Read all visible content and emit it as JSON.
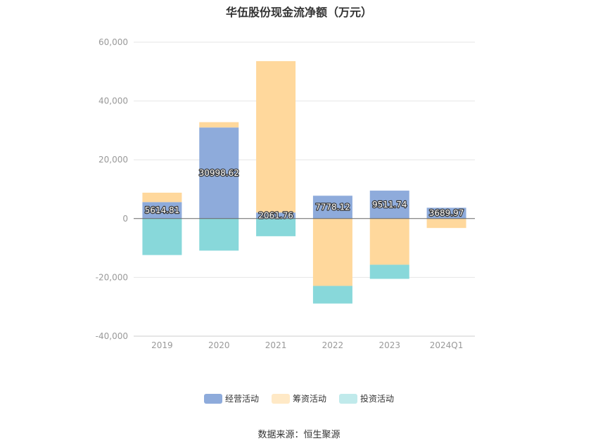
{
  "chart_data": {
    "type": "bar",
    "stacked": true,
    "title": "华伍股份现金流净额（万元）",
    "categories": [
      "2019",
      "2020",
      "2021",
      "2022",
      "2023",
      "2024Q1"
    ],
    "series": [
      {
        "name": "经营活动",
        "color": "#8eabdb",
        "values": [
          5614.81,
          30998.62,
          2061.76,
          7778.12,
          9511.74,
          3689.97
        ]
      },
      {
        "name": "筹资活动",
        "color": "#ffd89c",
        "values": [
          3200,
          1800,
          51500,
          -22900,
          -15700,
          -3200
        ]
      },
      {
        "name": "投资活动",
        "color": "#88d8da",
        "values": [
          -12400,
          -10900,
          -6000,
          -6000,
          -4800,
          0
        ]
      }
    ],
    "data_labels": [
      "5614.81",
      "30998.62",
      "2061.76",
      "7778.12",
      "9511.74",
      "3689.97"
    ],
    "ylim": [
      -40000,
      60000
    ],
    "yticks": [
      "60,000",
      "40,000",
      "20,000",
      "0",
      "-20,000",
      "-40,000"
    ],
    "ytick_values": [
      60000,
      40000,
      20000,
      0,
      -20000,
      -40000
    ],
    "grid": true,
    "legend_position": "bottom"
  },
  "legend_swatch_colors": {
    "financing": "#ffe9c6",
    "investing": "#c0eaeb"
  },
  "source_text": "数据来源：恒生聚源"
}
